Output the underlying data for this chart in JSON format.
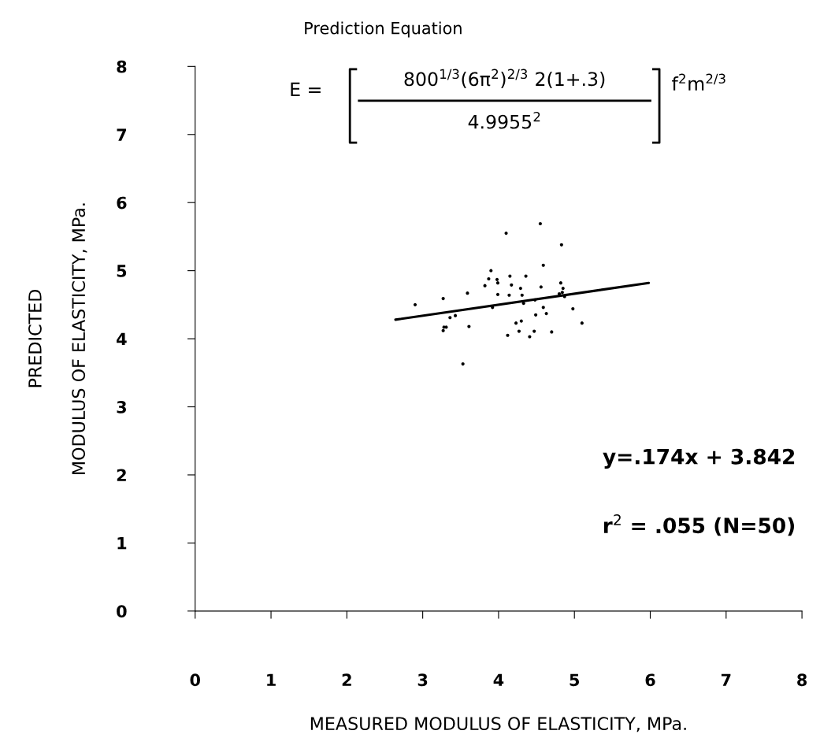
{
  "chart_data": {
    "type": "scatter",
    "title": "Prediction Equation",
    "xlabel": "MEASURED MODULUS OF ELASTICITY, MPa.",
    "ylabel": "PREDICTED\nMODULUS OF ELASTICITY, MPa.",
    "xlim": [
      0,
      8
    ],
    "ylim": [
      0,
      8
    ],
    "xticks": [
      0,
      1,
      2,
      3,
      4,
      5,
      6,
      7,
      8
    ],
    "yticks": [
      0,
      1,
      2,
      3,
      4,
      5,
      6,
      7,
      8
    ],
    "grid": false,
    "legend": false,
    "marker": "circle",
    "series": [
      {
        "type": "scatter",
        "color": "#000000",
        "x": [
          4.55,
          4.1,
          4.83,
          4.59,
          3.9,
          3.87,
          3.98,
          3.99,
          4.15,
          4.36,
          4.17,
          3.82,
          4.29,
          4.56,
          4.82,
          4.85,
          4.8,
          4.84,
          3.59,
          3.99,
          4.14,
          4.31,
          3.27,
          2.9,
          4.59,
          4.63,
          4.49,
          4.98,
          3.43,
          3.36,
          4.3,
          4.23,
          3.61,
          5.1,
          3.28,
          3.31,
          3.27,
          4.27,
          4.47,
          4.7,
          4.12,
          4.41,
          3.53,
          3.92,
          4.33,
          4.48,
          4.87
        ],
        "values": [
          5.69,
          5.55,
          5.38,
          5.08,
          5.0,
          4.88,
          4.87,
          4.82,
          4.92,
          4.92,
          4.79,
          4.78,
          4.74,
          4.76,
          4.82,
          4.74,
          4.66,
          4.68,
          4.67,
          4.65,
          4.64,
          4.64,
          4.59,
          4.5,
          4.46,
          4.37,
          4.35,
          4.44,
          4.34,
          4.31,
          4.26,
          4.23,
          4.18,
          4.23,
          4.17,
          4.17,
          4.12,
          4.11,
          4.11,
          4.1,
          4.05,
          4.03,
          3.63,
          4.46,
          4.52,
          4.57,
          4.62
        ]
      },
      {
        "type": "line",
        "color": "#000000",
        "marker": "none",
        "line_style": "solid",
        "x": [
          2.64,
          5.98
        ],
        "values": [
          4.28,
          4.82
        ]
      }
    ],
    "annotations": [
      "E =",
      "800$^{1/3}$(6π$^{2}$)$^{2/3}$ 2(1+.3)",
      "4.9955$^{2}$",
      "f$^{2}$m$^{2/3}$",
      "y=.174x + 3.842",
      "r$^{2}$ = .055 (N=50)"
    ]
  }
}
